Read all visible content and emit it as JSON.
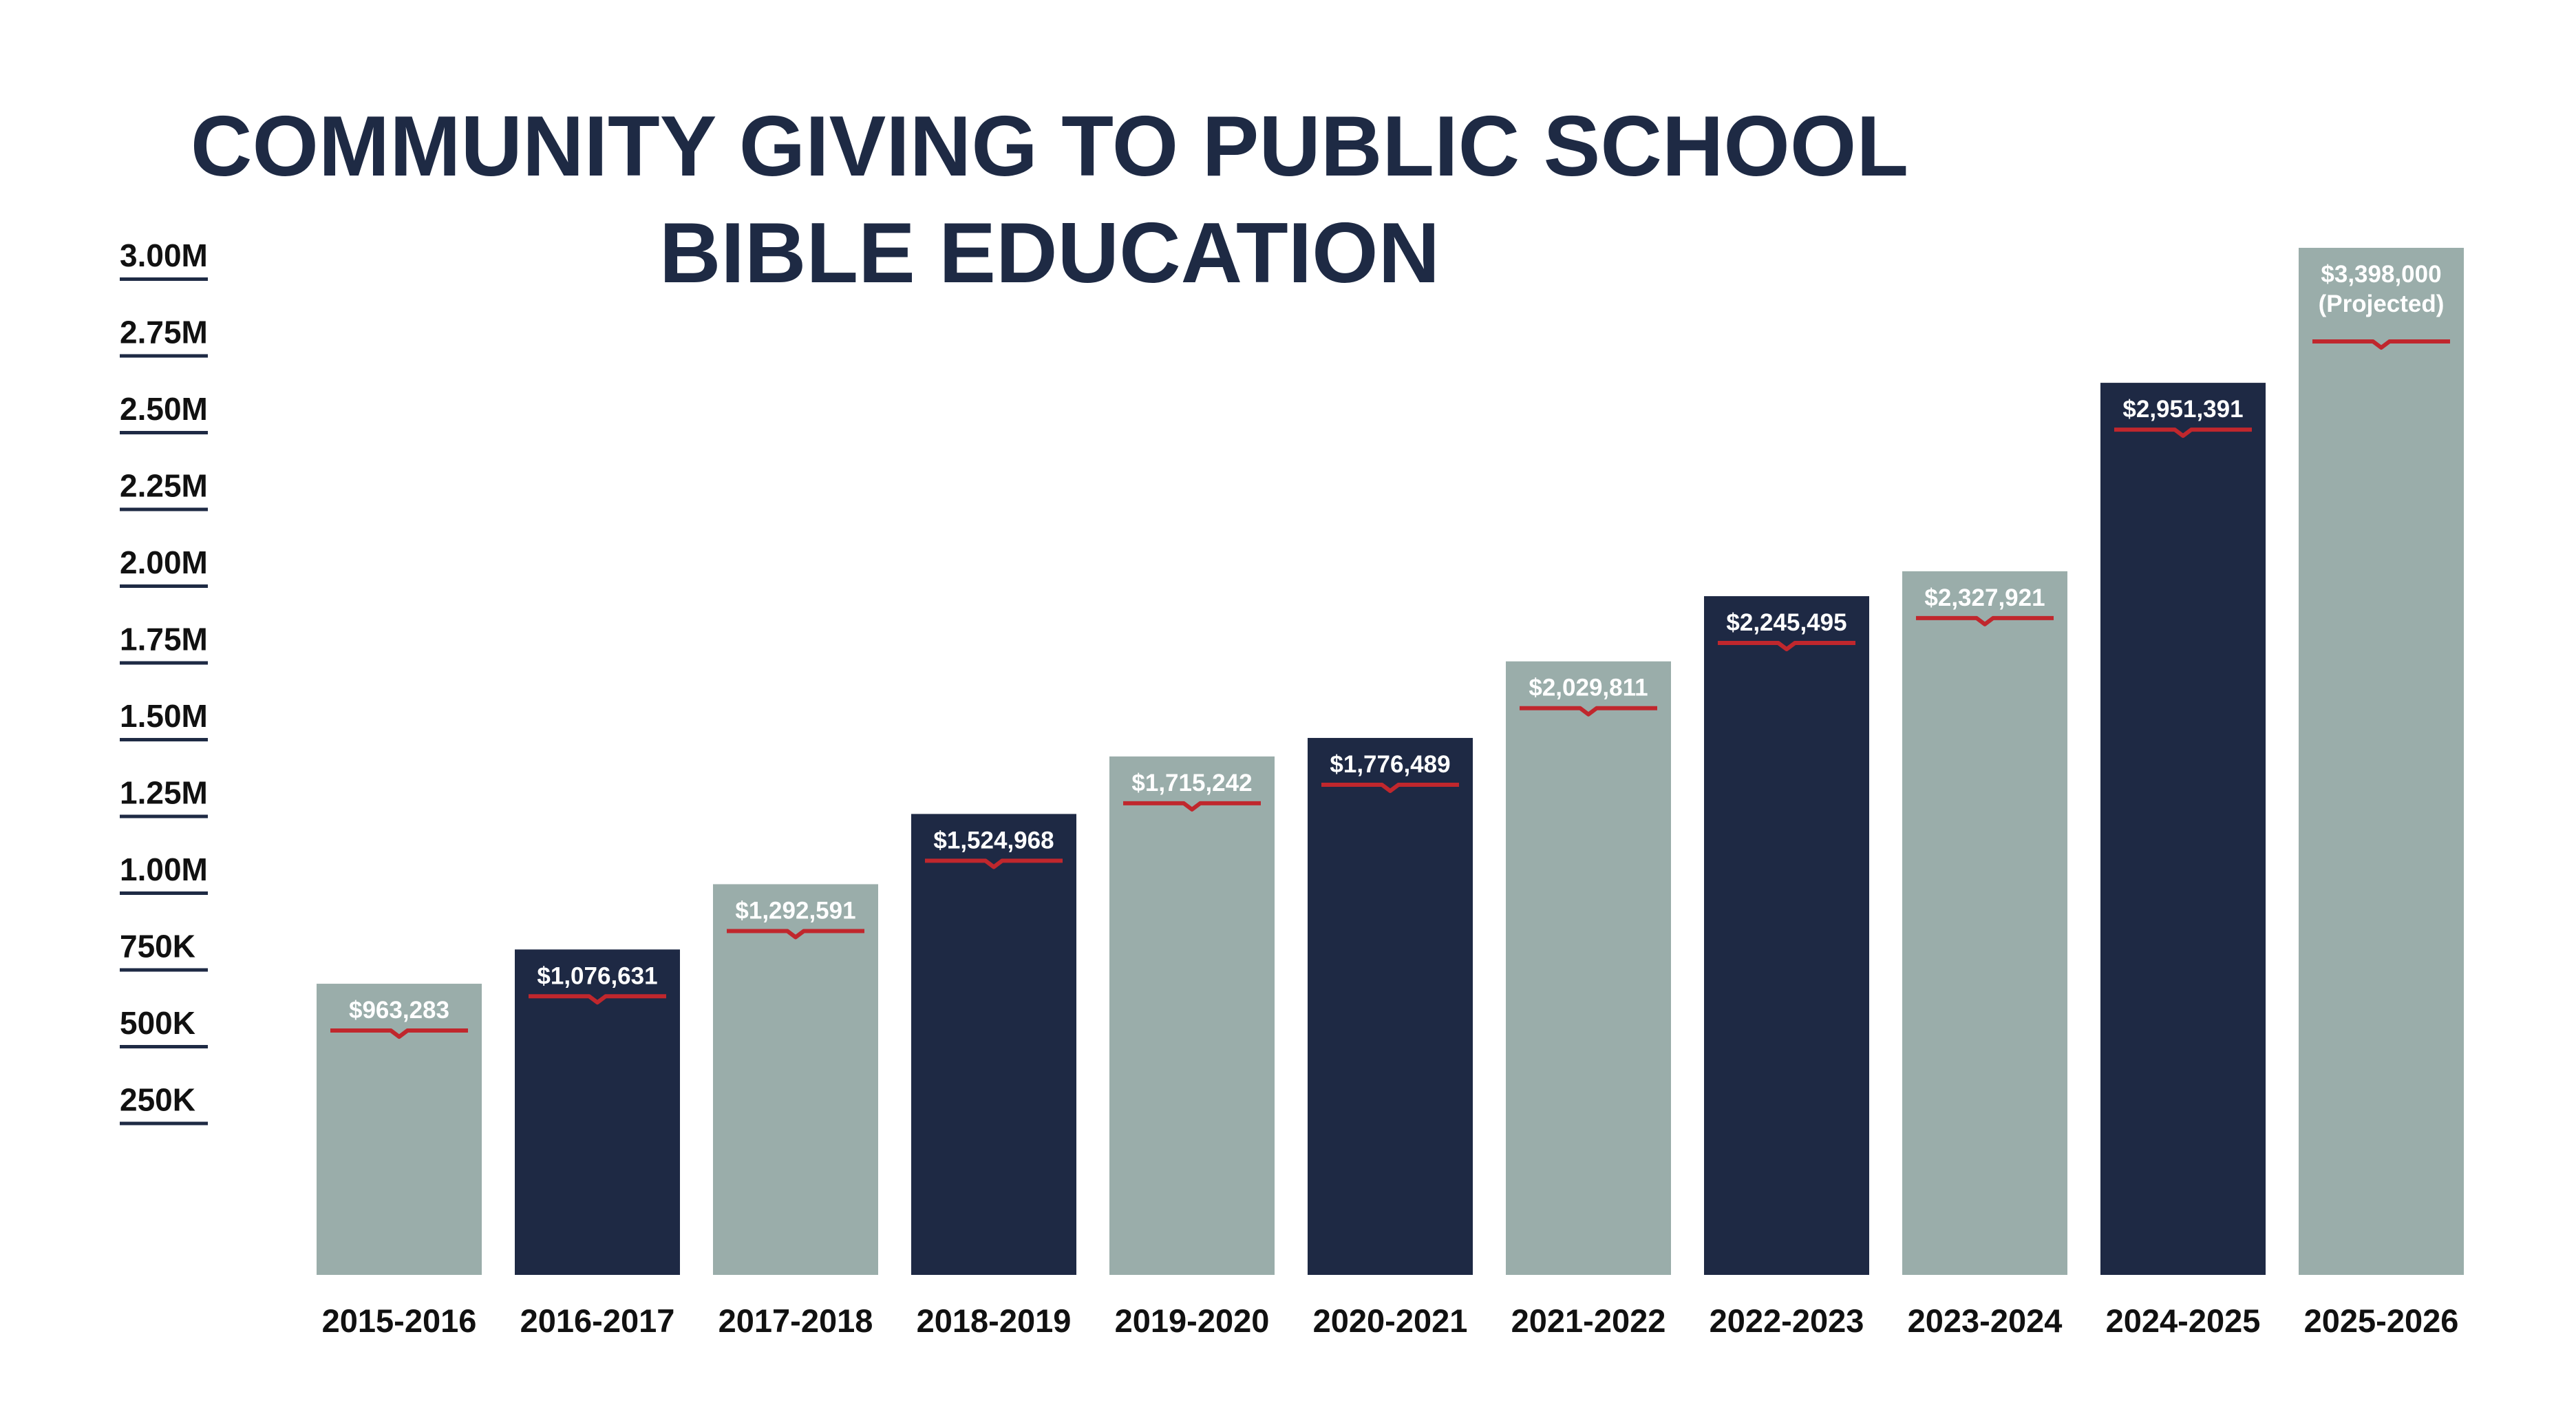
{
  "chart_data": {
    "type": "bar",
    "title": [
      "COMMUNITY GIVING TO PUBLIC SCHOOL",
      "BIBLE EDUCATION"
    ],
    "categories": [
      "2015-2016",
      "2016-2017",
      "2017-2018",
      "2018-2019",
      "2019-2020",
      "2020-2021",
      "2021-2022",
      "2022-2023",
      "2023-2024",
      "2024-2025",
      "2025-2026"
    ],
    "values": [
      963283,
      1076631,
      1292591,
      1524968,
      1715242,
      1776489,
      2029811,
      2245495,
      2327921,
      2951391,
      3398000
    ],
    "value_labels": [
      "$963,283",
      "$1,076,631",
      "$1,292,591",
      "$1,524,968",
      "$1,715,242",
      "$1,776,489",
      "$2,029,811",
      "$2,245,495",
      "$2,327,921",
      "$2,951,391",
      "$3,398,000"
    ],
    "value_label_notes": [
      "",
      "",
      "",
      "",
      "",
      "",
      "",
      "",
      "",
      "",
      "(Projected)"
    ],
    "ytick_labels": [
      "3.00M",
      "2.75M",
      "2.50M",
      "2.25M",
      "2.00M",
      "1.75M",
      "1.50M",
      "1.25M",
      "1.00M",
      "750K",
      "500K",
      "250K"
    ],
    "xlabel": "",
    "ylabel": "",
    "grid": false,
    "legend": "none",
    "colors": {
      "title": "#1e2a44",
      "bar_light": "#9aadaa",
      "bar_dark": "#1e2944",
      "value_underline": "#c0272d",
      "tick_text": "#111111",
      "tick_underline": "#1e2a44"
    },
    "bar_color_pattern": [
      "light",
      "dark",
      "light",
      "dark",
      "light",
      "dark",
      "light",
      "dark",
      "light",
      "dark",
      "light"
    ]
  }
}
